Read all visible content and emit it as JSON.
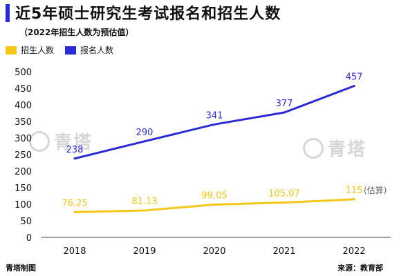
{
  "header": {
    "title": "近5年硕士研究生考试报名和招生人数",
    "subtitle": "（2022年招生人数为预估值）"
  },
  "legend": [
    {
      "label": "招生人数",
      "color": "#f5c518"
    },
    {
      "label": "报名人数",
      "color": "#2b2bd6"
    }
  ],
  "watermark": {
    "text": "青塔"
  },
  "footer": {
    "credit": "青塔制图",
    "source": "来源：教育部"
  },
  "chart_data": {
    "type": "line",
    "categories": [
      "2018",
      "2019",
      "2020",
      "2021",
      "2022"
    ],
    "ylim": [
      0,
      500
    ],
    "yticks": [
      0,
      50,
      100,
      150,
      200,
      250,
      300,
      350,
      400,
      450,
      500
    ],
    "grid": false,
    "legend_position": "top-left",
    "series": [
      {
        "name": "招生人数",
        "color": "#f5c518",
        "values": [
          76.25,
          81.13,
          99.05,
          105.07,
          115
        ],
        "data_labels": [
          "76.25",
          "81.13",
          "99.05",
          "105.07",
          "115"
        ],
        "annotation": "(估算)"
      },
      {
        "name": "报名人数",
        "color": "#2b2bd6",
        "values": [
          238,
          290,
          341,
          377,
          457
        ],
        "data_labels": [
          "238",
          "290",
          "341",
          "377",
          "457"
        ]
      }
    ]
  }
}
